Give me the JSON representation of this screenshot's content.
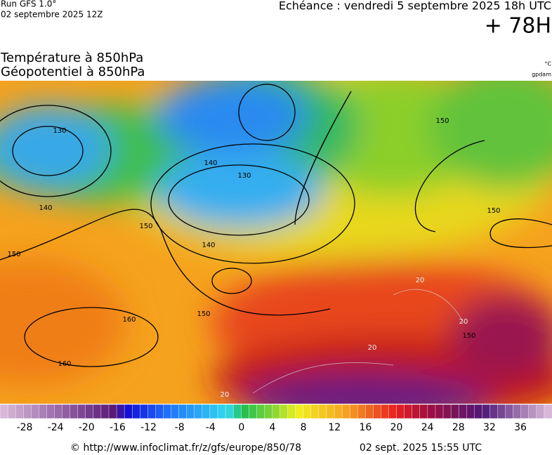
{
  "header": {
    "run": "Run GFS 1.0°",
    "run_date": "02 septembre 2025 12Z",
    "echeance": "Echéance : vendredi 5 septembre 2025 18h UTC",
    "lead": "+ 78H"
  },
  "titles": [
    "Température à 850hPa",
    "Géopotentiel à 850hPa"
  ],
  "units": [
    "°C",
    "gpdam"
  ],
  "map": {
    "contour_labels": [
      "130",
      "140",
      "140",
      "130",
      "140",
      "150",
      "150",
      "150",
      "150",
      "150",
      "160",
      "160",
      "20",
      "20",
      "20",
      "20",
      "150"
    ]
  },
  "colorbar": {
    "ticks": [
      -28,
      -24,
      -20,
      -16,
      -12,
      -8,
      -4,
      0,
      4,
      8,
      12,
      16,
      20,
      24,
      28,
      32,
      36
    ]
  },
  "footer": {
    "url": "© http://www.infoclimat.fr/z/gfs/europe/850/78",
    "date": "02 sept. 2025 15:55 UTC"
  }
}
